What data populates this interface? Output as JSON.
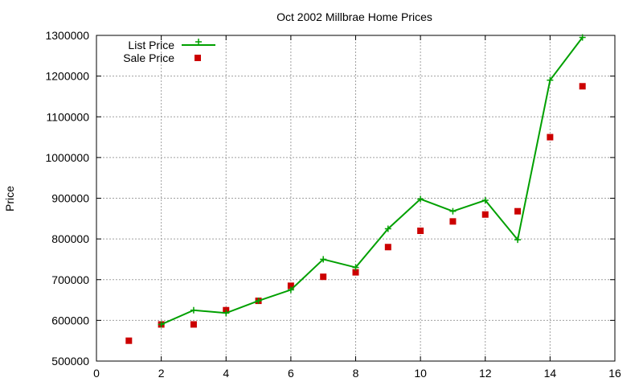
{
  "chart_data": {
    "type": "line",
    "title": "Oct 2002 Millbrae Home Prices",
    "xlabel": "",
    "ylabel": "Price",
    "xlim": [
      0,
      16
    ],
    "ylim": [
      500000,
      1300000
    ],
    "x_ticks": [
      "0",
      "2",
      "4",
      "6",
      "8",
      "10",
      "12",
      "14",
      "16"
    ],
    "y_ticks": [
      "500000",
      "600000",
      "700000",
      "800000",
      "900000",
      "1000000",
      "1100000",
      "1200000",
      "1300000"
    ],
    "grid": true,
    "legend_position": "top-left",
    "colors": {
      "list_price": "#00a000",
      "sale_price": "#cc0000"
    },
    "x": [
      1,
      2,
      3,
      4,
      5,
      6,
      7,
      8,
      9,
      10,
      11,
      12,
      13,
      14,
      15
    ],
    "series": [
      {
        "name": "List Price",
        "style": "line-with-plus-markers",
        "values": [
          null,
          590000,
          625000,
          618000,
          648000,
          675000,
          750000,
          730000,
          825000,
          898000,
          868000,
          895000,
          798000,
          1190000,
          1295000
        ]
      },
      {
        "name": "Sale Price",
        "style": "square-points",
        "values": [
          550000,
          590000,
          590000,
          625000,
          648000,
          685000,
          707000,
          718000,
          780000,
          820000,
          843000,
          860000,
          868000,
          1050000,
          1175000
        ]
      }
    ]
  }
}
